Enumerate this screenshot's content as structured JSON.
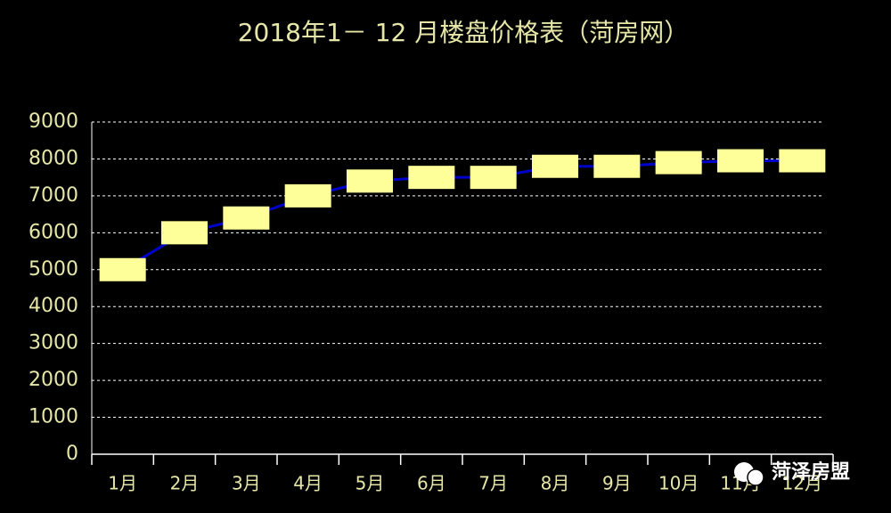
{
  "chart_data": {
    "type": "line",
    "title": "2018年1－ 12 月楼盘价格表（菏房网）",
    "categories": [
      "1月",
      "2月",
      "3月",
      "4月",
      "5月",
      "6月",
      "7月",
      "8月",
      "9月",
      "10月",
      "11月",
      "12月"
    ],
    "values": [
      5000,
      6000,
      6400,
      7000,
      7400,
      7500,
      7500,
      7800,
      7800,
      7900,
      7950,
      7950
    ],
    "color": "#0000cc",
    "marker_color": "#ffff99",
    "ylim": [
      0,
      9000
    ],
    "yticks": [
      0,
      1000,
      2000,
      3000,
      4000,
      5000,
      6000,
      7000,
      8000,
      9000
    ],
    "grid": true
  },
  "watermark": "菏泽房盟"
}
